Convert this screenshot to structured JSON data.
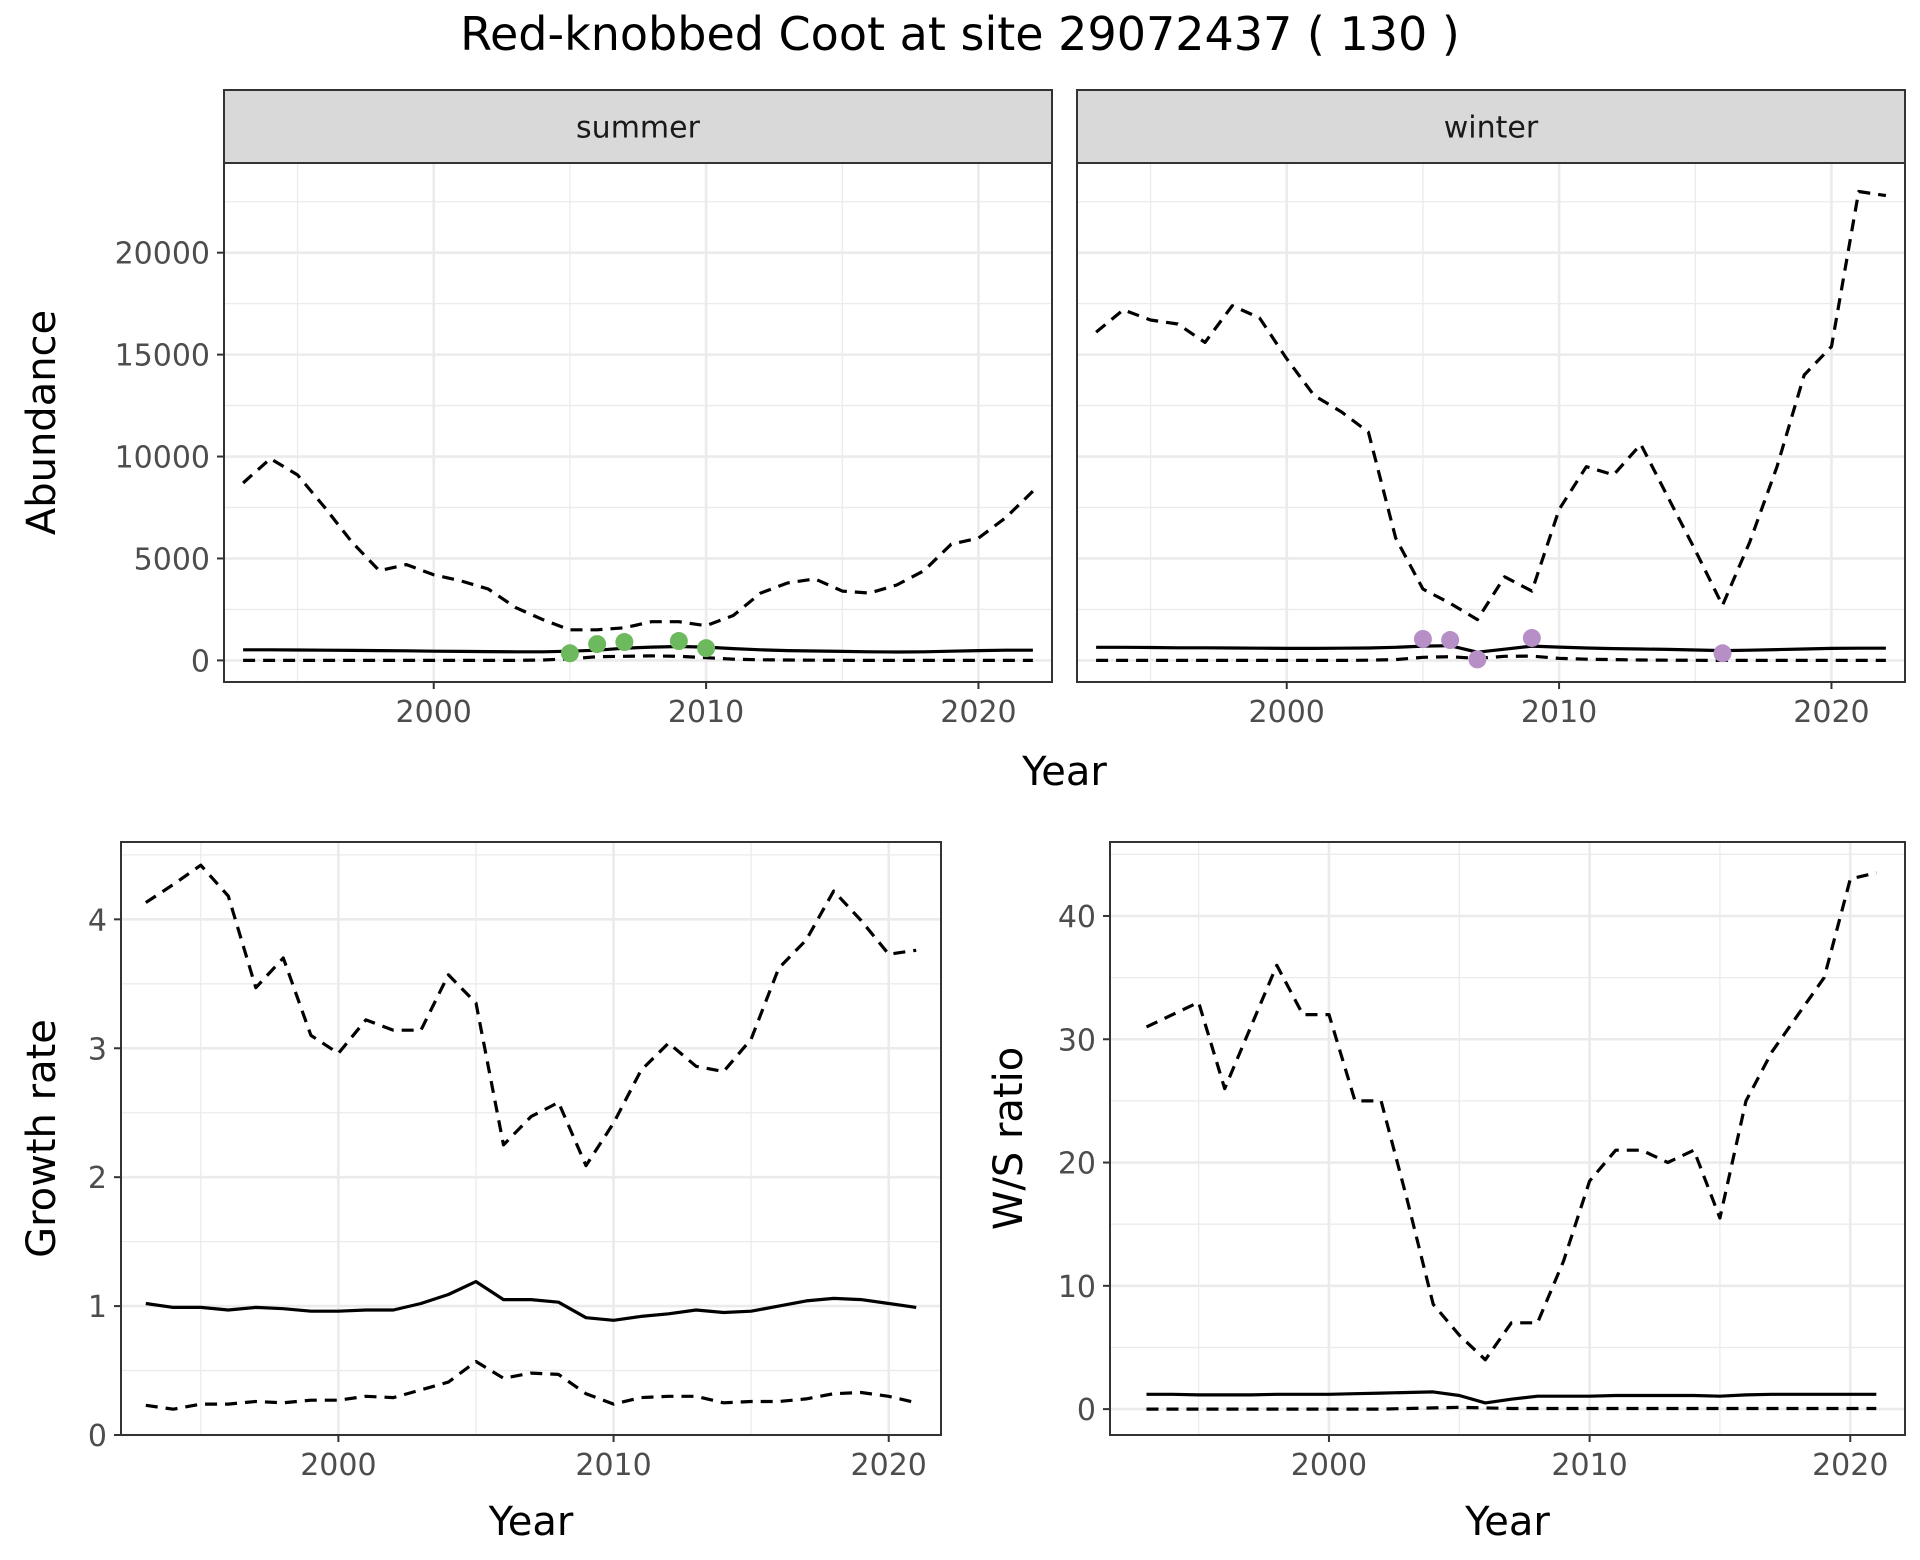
{
  "title": "Red-knobbed Coot at site 29072437 ( 130 )",
  "chart_data": [
    {
      "id": "abundance",
      "type": "line",
      "facets": [
        "summer",
        "winter"
      ],
      "xlabel": "Year",
      "ylabel": "Abundance",
      "xlim": [
        1992.3,
        2022.7
      ],
      "ylim": [
        -1060,
        24400
      ],
      "xticks": [
        2000,
        2010,
        2020
      ],
      "yticks": [
        0,
        5000,
        10000,
        15000,
        20000
      ],
      "grid": true,
      "legend": "none",
      "panels": [
        {
          "facet": "summer",
          "x": [
            1993,
            1994,
            1995,
            1996,
            1997,
            1998,
            1999,
            2000,
            2001,
            2002,
            2003,
            2004,
            2005,
            2006,
            2007,
            2008,
            2009,
            2010,
            2011,
            2012,
            2013,
            2014,
            2015,
            2016,
            2017,
            2018,
            2019,
            2020,
            2021,
            2022
          ],
          "series": [
            {
              "style": "dashed",
              "values": [
                8700,
                9900,
                9100,
                7500,
                5800,
                4400,
                4700,
                4200,
                3900,
                3500,
                2600,
                2000,
                1500,
                1500,
                1600,
                1900,
                1900,
                1700,
                2200,
                3300,
                3800,
                4000,
                3400,
                3300,
                3700,
                4400,
                5700,
                6000,
                7000,
                8300
              ]
            },
            {
              "style": "solid",
              "values": [
                520,
                520,
                510,
                500,
                490,
                480,
                470,
                450,
                440,
                430,
                420,
                420,
                450,
                500,
                600,
                650,
                680,
                650,
                580,
                520,
                480,
                460,
                440,
                420,
                410,
                420,
                450,
                480,
                500,
                500
              ]
            },
            {
              "style": "dashed",
              "values": [
                0,
                0,
                0,
                0,
                0,
                0,
                0,
                0,
                0,
                0,
                0,
                20,
                80,
                180,
                200,
                220,
                200,
                130,
                60,
                30,
                20,
                10,
                5,
                0,
                0,
                0,
                0,
                0,
                0,
                0
              ]
            }
          ],
          "points": {
            "color": "#6dba5e",
            "x": [
              2005,
              2006,
              2007,
              2009,
              2010
            ],
            "y": [
              350,
              800,
              900,
              950,
              600
            ]
          }
        },
        {
          "facet": "winter",
          "x": [
            1993,
            1994,
            1995,
            1996,
            1997,
            1998,
            1999,
            2000,
            2001,
            2002,
            2003,
            2004,
            2005,
            2006,
            2007,
            2008,
            2009,
            2010,
            2011,
            2012,
            2013,
            2014,
            2015,
            2016,
            2017,
            2018,
            2019,
            2020,
            2021,
            2022
          ],
          "series": [
            {
              "style": "dashed",
              "values": [
                16100,
                17200,
                16700,
                16500,
                15600,
                17400,
                16800,
                14800,
                13000,
                12200,
                11200,
                6000,
                3500,
                2800,
                2000,
                4100,
                3400,
                7400,
                9500,
                9100,
                10600,
                8000,
                5400,
                2700,
                5800,
                9500,
                14000,
                15400,
                23000,
                22800
              ]
            },
            {
              "style": "solid",
              "values": [
                640,
                640,
                630,
                620,
                620,
                610,
                600,
                590,
                590,
                600,
                610,
                640,
                700,
                720,
                400,
                550,
                700,
                650,
                610,
                580,
                560,
                540,
                510,
                480,
                500,
                530,
                560,
                590,
                600,
                600
              ]
            },
            {
              "style": "dashed",
              "values": [
                0,
                0,
                0,
                0,
                0,
                0,
                0,
                0,
                0,
                0,
                10,
                40,
                150,
                180,
                100,
                200,
                210,
                100,
                60,
                40,
                20,
                10,
                5,
                0,
                0,
                0,
                0,
                0,
                0,
                0
              ]
            }
          ],
          "points": {
            "color": "#b58fc6",
            "x": [
              2005,
              2006,
              2007,
              2009,
              2016
            ],
            "y": [
              1050,
              1000,
              50,
              1100,
              350
            ]
          }
        }
      ]
    },
    {
      "id": "growth",
      "type": "line",
      "xlabel": "Year",
      "ylabel": "Growth rate",
      "xlim": [
        1992.1,
        2021.9
      ],
      "ylim": [
        0,
        4.6
      ],
      "xticks": [
        2000,
        2010,
        2020
      ],
      "yticks": [
        0,
        1,
        2,
        3,
        4
      ],
      "grid": true,
      "legend": "none",
      "x": [
        1993,
        1994,
        1995,
        1996,
        1997,
        1998,
        1999,
        2000,
        2001,
        2002,
        2003,
        2004,
        2005,
        2006,
        2007,
        2008,
        2009,
        2010,
        2011,
        2012,
        2013,
        2014,
        2015,
        2016,
        2017,
        2018,
        2019,
        2020,
        2021
      ],
      "series": [
        {
          "style": "dashed",
          "values": [
            4.13,
            4.27,
            4.42,
            4.18,
            3.47,
            3.7,
            3.1,
            2.96,
            3.22,
            3.14,
            3.14,
            3.57,
            3.35,
            2.25,
            2.47,
            2.58,
            2.09,
            2.42,
            2.83,
            3.04,
            2.86,
            2.82,
            3.07,
            3.62,
            3.84,
            4.22,
            3.99,
            3.73,
            3.76
          ]
        },
        {
          "style": "solid",
          "values": [
            1.02,
            0.99,
            0.99,
            0.97,
            0.99,
            0.98,
            0.96,
            0.96,
            0.97,
            0.97,
            1.02,
            1.09,
            1.19,
            1.05,
            1.05,
            1.03,
            0.91,
            0.89,
            0.92,
            0.94,
            0.97,
            0.95,
            0.96,
            1.0,
            1.04,
            1.06,
            1.05,
            1.02,
            0.99
          ]
        },
        {
          "style": "dashed",
          "values": [
            0.23,
            0.2,
            0.24,
            0.24,
            0.26,
            0.25,
            0.27,
            0.27,
            0.3,
            0.29,
            0.35,
            0.41,
            0.57,
            0.44,
            0.48,
            0.47,
            0.32,
            0.24,
            0.29,
            0.3,
            0.3,
            0.25,
            0.26,
            0.26,
            0.28,
            0.32,
            0.33,
            0.3,
            0.25
          ]
        }
      ]
    },
    {
      "id": "ws_ratio",
      "type": "line",
      "xlabel": "Year",
      "ylabel": "W/S ratio",
      "xlim": [
        1991.6,
        2022.1
      ],
      "ylim": [
        -2.1,
        46.0
      ],
      "xticks": [
        2000,
        2010,
        2020
      ],
      "yticks": [
        0,
        10,
        20,
        30,
        40
      ],
      "grid": true,
      "legend": "none",
      "x": [
        1993,
        1994,
        1995,
        1996,
        1997,
        1998,
        1999,
        2000,
        2001,
        2002,
        2003,
        2004,
        2005,
        2006,
        2007,
        2008,
        2009,
        2010,
        2011,
        2012,
        2013,
        2014,
        2015,
        2016,
        2017,
        2018,
        2019,
        2020,
        2021
      ],
      "series": [
        {
          "style": "dashed",
          "values": [
            31,
            32,
            33,
            26,
            31,
            36,
            32,
            32,
            25,
            25,
            17,
            8.5,
            6,
            4,
            7,
            7,
            12,
            18.5,
            21,
            21,
            20,
            21,
            15.5,
            25,
            29,
            32,
            35,
            43,
            43.5
          ]
        },
        {
          "style": "solid",
          "values": [
            1.2,
            1.2,
            1.15,
            1.15,
            1.15,
            1.2,
            1.2,
            1.2,
            1.25,
            1.3,
            1.35,
            1.4,
            1.1,
            0.5,
            0.8,
            1.05,
            1.05,
            1.05,
            1.1,
            1.1,
            1.1,
            1.1,
            1.05,
            1.15,
            1.2,
            1.2,
            1.2,
            1.2,
            1.2
          ]
        },
        {
          "style": "dashed",
          "values": [
            0,
            0,
            0,
            0,
            0,
            0,
            0,
            0,
            0,
            0,
            0.05,
            0.1,
            0.15,
            0.1,
            0.05,
            0.05,
            0.05,
            0.05,
            0.05,
            0.05,
            0.05,
            0.05,
            0.05,
            0.05,
            0.05,
            0.05,
            0.05,
            0.05,
            0.05
          ]
        }
      ]
    }
  ]
}
